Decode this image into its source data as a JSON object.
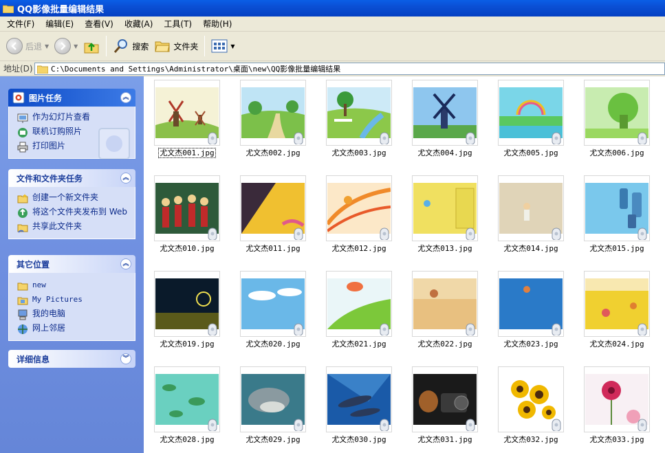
{
  "window": {
    "title": "QQ影像批量编辑结果"
  },
  "menu": [
    "文件(F)",
    "编辑(E)",
    "查看(V)",
    "收藏(A)",
    "工具(T)",
    "帮助(H)"
  ],
  "toolbar": {
    "back": "后退",
    "search": "搜索",
    "folders": "文件夹"
  },
  "address": {
    "label": "地址(D)",
    "path": "C:\\Documents and Settings\\Administrator\\桌面\\new\\QQ影像批量编辑结果"
  },
  "sidebar": {
    "picture_tasks": {
      "title": "图片任务",
      "items": [
        "作为幻灯片查看",
        "联机订购照片",
        "打印图片"
      ]
    },
    "file_tasks": {
      "title": "文件和文件夹任务",
      "items": [
        "创建一个新文件夹",
        "将这个文件夹发布到 Web",
        "共享此文件夹"
      ]
    },
    "other_places": {
      "title": "其它位置",
      "items": [
        "new",
        "My Pictures",
        "我的电脑",
        "网上邻居"
      ]
    },
    "details": {
      "title": "详细信息"
    }
  },
  "files": [
    "尤文杰001.jpg",
    "尤文杰002.jpg",
    "尤文杰003.jpg",
    "尤文杰004.jpg",
    "尤文杰005.jpg",
    "尤文杰006.jpg",
    "尤文杰010.jpg",
    "尤文杰011.jpg",
    "尤文杰012.jpg",
    "尤文杰013.jpg",
    "尤文杰014.jpg",
    "尤文杰015.jpg",
    "尤文杰019.jpg",
    "尤文杰020.jpg",
    "尤文杰021.jpg",
    "尤文杰022.jpg",
    "尤文杰023.jpg",
    "尤文杰024.jpg",
    "尤文杰028.jpg",
    "尤文杰029.jpg",
    "尤文杰030.jpg",
    "尤文杰031.jpg",
    "尤文杰032.jpg",
    "尤文杰033.jpg"
  ]
}
